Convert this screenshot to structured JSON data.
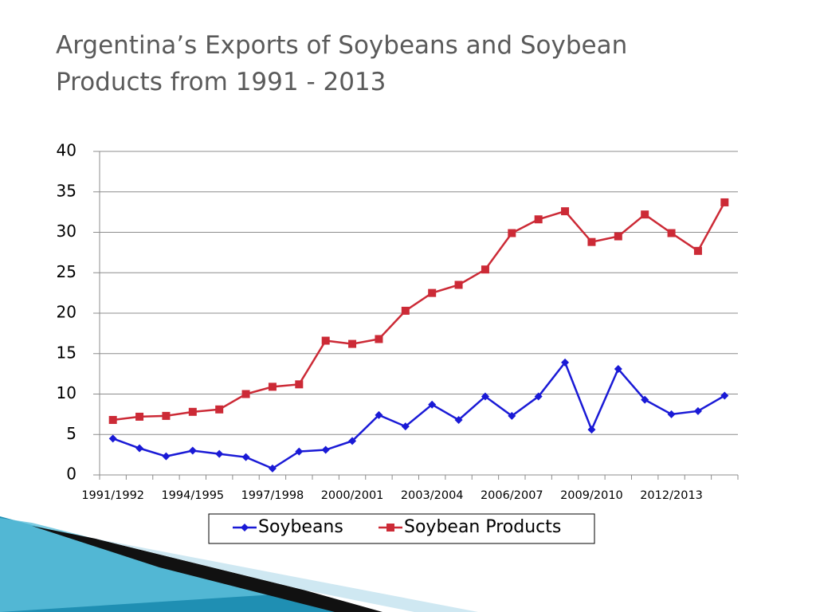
{
  "chart_data": {
    "type": "line",
    "title": "Argentina’s Exports of Soybeans and Soybean Products from 1991 - 2013",
    "categories": [
      "1991/1992",
      null,
      null,
      "1994/1995",
      null,
      null,
      "1997/1998",
      null,
      null,
      "2000/2001",
      null,
      null,
      "2003/2004",
      null,
      null,
      "2006/2007",
      null,
      null,
      "2009/2010",
      null,
      null,
      "2012/2013",
      null,
      null
    ],
    "series": [
      {
        "name": "Soybeans",
        "color": "#1a1ad6",
        "marker": "diamond",
        "values": [
          4.5,
          3.3,
          2.3,
          3.0,
          2.6,
          2.2,
          0.8,
          2.9,
          3.1,
          4.2,
          7.4,
          6.0,
          8.7,
          6.8,
          9.7,
          7.3,
          9.7,
          13.9,
          5.6,
          13.1,
          9.3,
          7.5,
          7.9,
          9.8
        ]
      },
      {
        "name": "Soybean Products",
        "color": "#cc2a36",
        "marker": "square",
        "values": [
          6.8,
          7.2,
          7.3,
          7.8,
          8.1,
          10.0,
          10.9,
          11.2,
          16.6,
          16.2,
          16.8,
          20.3,
          22.5,
          23.5,
          25.4,
          29.9,
          31.6,
          32.6,
          28.8,
          29.5,
          32.2,
          29.9,
          27.7,
          33.7
        ]
      }
    ],
    "ylim": [
      0,
      40
    ],
    "yticks": [
      0,
      5,
      10,
      15,
      20,
      25,
      30,
      35,
      40
    ],
    "grid": true,
    "legend": "bottom"
  }
}
